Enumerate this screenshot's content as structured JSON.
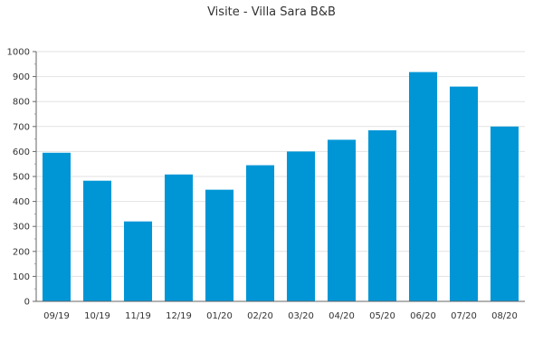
{
  "chart_data": {
    "type": "bar",
    "title": "Visite - Villa Sara B&B",
    "categories": [
      "09/19",
      "10/19",
      "11/19",
      "12/19",
      "01/20",
      "02/20",
      "03/20",
      "04/20",
      "05/20",
      "06/20",
      "07/20",
      "08/20"
    ],
    "values": [
      595,
      483,
      320,
      508,
      447,
      545,
      600,
      647,
      685,
      918,
      860,
      700
    ],
    "ylim": [
      0,
      1000
    ],
    "yticks": [
      0,
      100,
      200,
      300,
      400,
      500,
      600,
      700,
      800,
      900,
      1000
    ],
    "grid": true,
    "bar_color": "#0096d6",
    "xlabel": "",
    "ylabel": ""
  }
}
